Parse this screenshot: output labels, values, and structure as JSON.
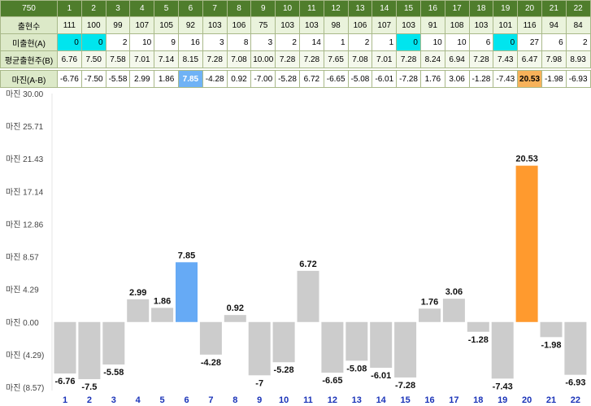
{
  "table": {
    "corner": "750",
    "columns": [
      "1",
      "2",
      "3",
      "4",
      "5",
      "6",
      "7",
      "8",
      "9",
      "10",
      "11",
      "12",
      "13",
      "14",
      "15",
      "16",
      "17",
      "18",
      "19",
      "20",
      "21",
      "22"
    ],
    "rows": [
      {
        "label": "출현수",
        "values": [
          "111",
          "100",
          "99",
          "107",
          "105",
          "92",
          "103",
          "106",
          "75",
          "103",
          "103",
          "98",
          "106",
          "107",
          "103",
          "91",
          "108",
          "103",
          "101",
          "116",
          "94",
          "84"
        ]
      },
      {
        "label": "미출현(A)",
        "values": [
          "0",
          "0",
          "2",
          "10",
          "9",
          "16",
          "3",
          "8",
          "3",
          "2",
          "14",
          "1",
          "2",
          "1",
          "0",
          "10",
          "10",
          "6",
          "0",
          "27",
          "6",
          "2"
        ]
      },
      {
        "label": "평균출현주(B)",
        "values": [
          "6.76",
          "7.50",
          "7.58",
          "7.01",
          "7.14",
          "8.15",
          "7.28",
          "7.08",
          "10.00",
          "7.28",
          "7.28",
          "7.65",
          "7.08",
          "7.01",
          "7.28",
          "8.24",
          "6.94",
          "7.28",
          "7.43",
          "6.47",
          "7.98",
          "8.93"
        ]
      },
      {
        "label": "마진(A-B)",
        "values": [
          "-6.76",
          "-7.50",
          "-5.58",
          "2.99",
          "1.86",
          "7.85",
          "-4.28",
          "0.92",
          "-7.00",
          "-5.28",
          "6.72",
          "-6.65",
          "-5.08",
          "-6.01",
          "-7.28",
          "1.76",
          "3.06",
          "-1.28",
          "-7.43",
          "20.53",
          "-1.98",
          "-6.93"
        ]
      }
    ]
  },
  "colors": {
    "header_bg": "#4f7d2c",
    "absent_zero": "#00e5ee",
    "bar_default": "#cccccc",
    "bar_max_positive": "#66aaf5",
    "bar_highlight": "#ff9a2e",
    "cell_highlight_blue": "#6fb2f5",
    "cell_highlight_orange": "#f7b25a"
  },
  "chart_data": {
    "type": "bar",
    "categories": [
      "1",
      "2",
      "3",
      "4",
      "5",
      "6",
      "7",
      "8",
      "9",
      "10",
      "11",
      "12",
      "13",
      "14",
      "15",
      "16",
      "17",
      "18",
      "19",
      "20",
      "21",
      "22"
    ],
    "values": [
      -6.76,
      -7.5,
      -5.58,
      2.99,
      1.86,
      7.85,
      -4.28,
      0.92,
      -7,
      -5.28,
      6.72,
      -6.65,
      -5.08,
      -6.01,
      -7.28,
      1.76,
      3.06,
      -1.28,
      -7.43,
      20.53,
      -1.98,
      -6.93
    ],
    "value_labels": [
      "-6.76",
      "-7.5",
      "-5.58",
      "2.99",
      "1.86",
      "7.85",
      "-4.28",
      "0.92",
      "-7",
      "-5.28",
      "6.72",
      "-6.65",
      "-5.08",
      "-6.01",
      "-7.28",
      "1.76",
      "3.06",
      "-1.28",
      "-7.43",
      "20.53",
      "-1.98",
      "-6.93"
    ],
    "bar_colors": [
      "#cccccc",
      "#cccccc",
      "#cccccc",
      "#cccccc",
      "#cccccc",
      "#66aaf5",
      "#cccccc",
      "#cccccc",
      "#cccccc",
      "#cccccc",
      "#cccccc",
      "#cccccc",
      "#cccccc",
      "#cccccc",
      "#cccccc",
      "#cccccc",
      "#cccccc",
      "#cccccc",
      "#cccccc",
      "#ff9a2e",
      "#cccccc",
      "#cccccc"
    ],
    "y_ticks": [
      30.0,
      25.71,
      21.43,
      17.14,
      12.86,
      8.57,
      4.29,
      0.0,
      -4.29,
      -8.57
    ],
    "y_tick_labels": [
      "마진 30.00",
      "마진 25.71",
      "마진 21.43",
      "마진 17.14",
      "마진 12.86",
      "마진 8.57",
      "마진 4.29",
      "마진 0.00",
      "마진 (4.29)",
      "마진 (8.57)"
    ],
    "ylim": [
      -8.57,
      30.0
    ],
    "title": "",
    "xlabel": "",
    "ylabel": ""
  }
}
